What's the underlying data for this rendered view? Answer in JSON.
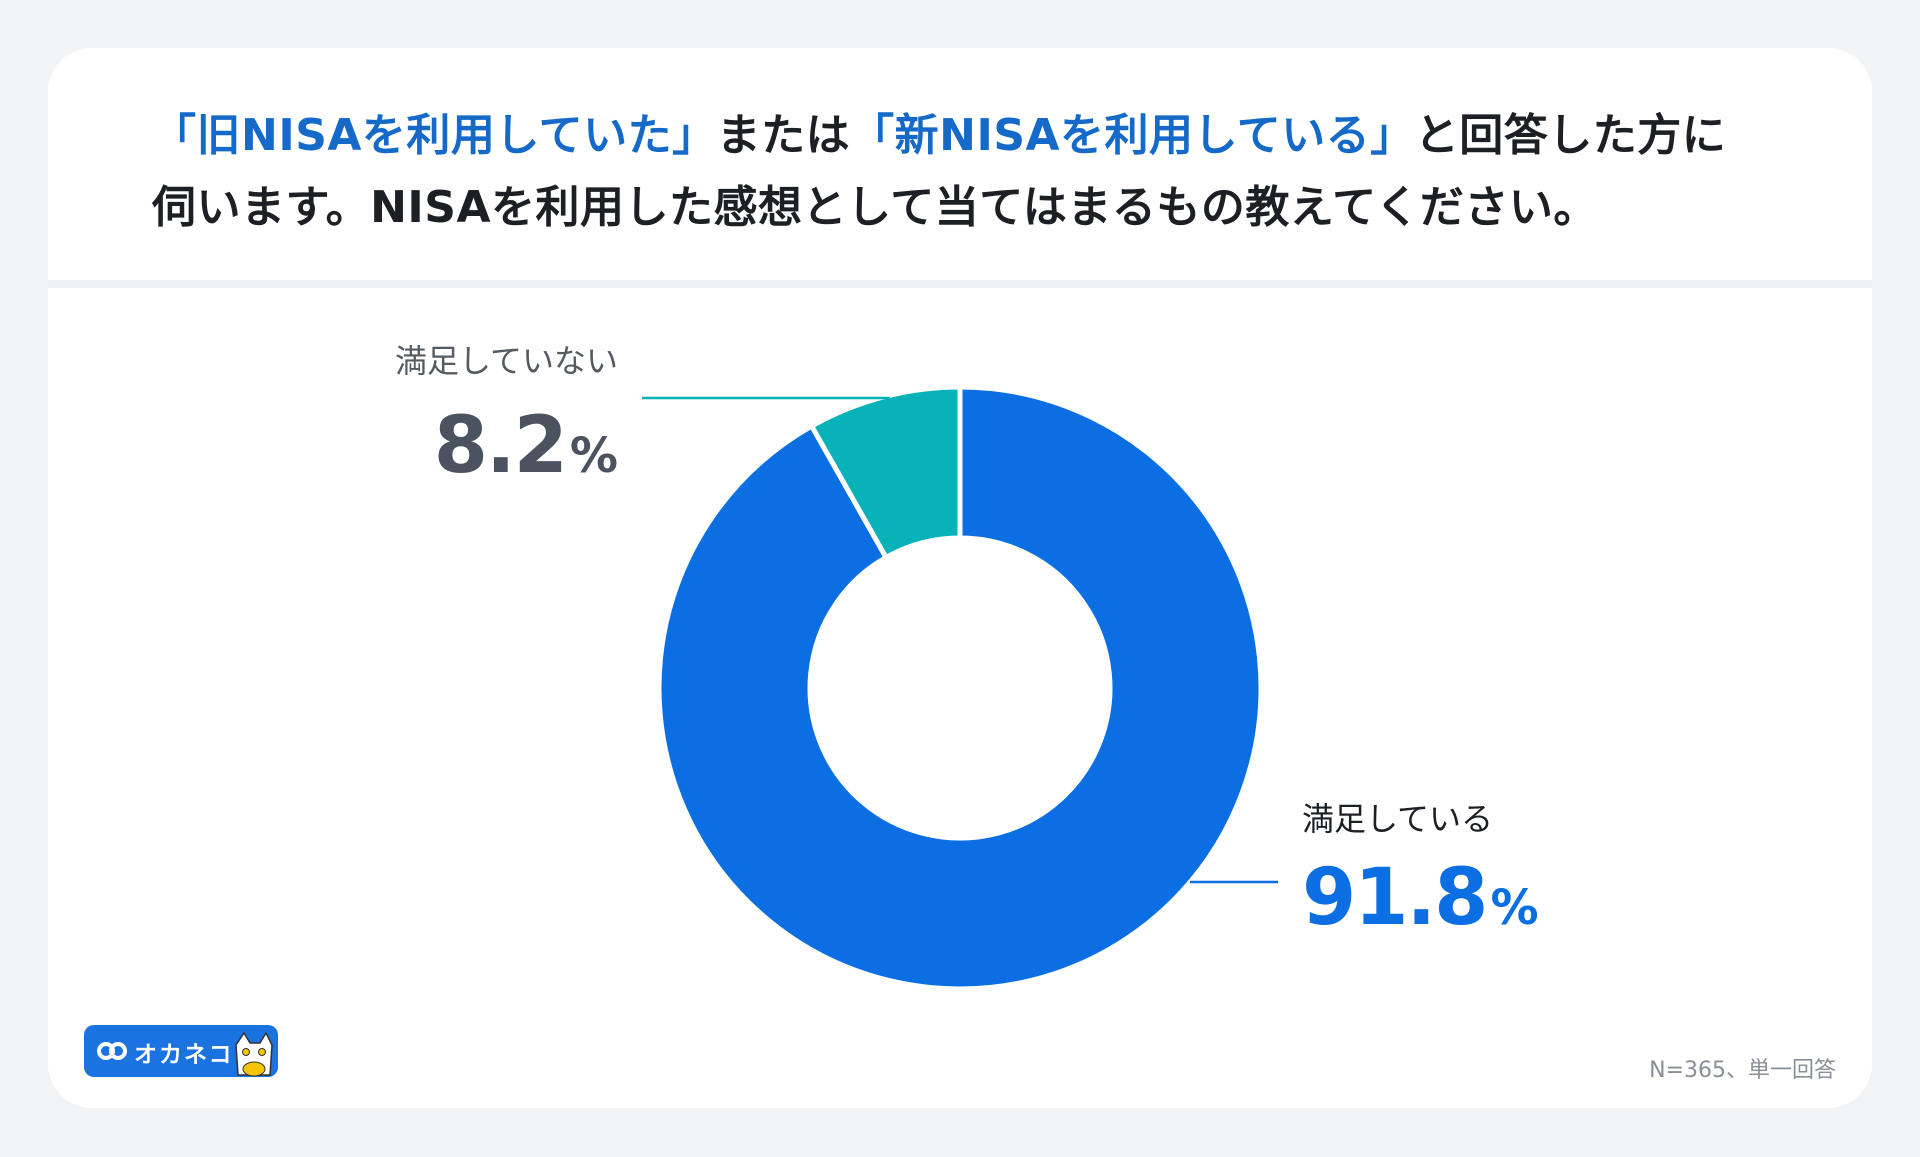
{
  "header": {
    "title_line1": [
      {
        "text": "「旧NISAを利用していた」",
        "highlight": true
      },
      {
        "text": "または",
        "highlight": false
      },
      {
        "text": "「新NISAを利用している」",
        "highlight": true
      },
      {
        "text": "と回答した方に",
        "highlight": false
      }
    ],
    "title_line2": "伺います。NISAを利用した感想として当てはまるもの教えてください。"
  },
  "chart_data": {
    "type": "pie",
    "variant": "donut",
    "slices": [
      {
        "label": "満足している",
        "value": 91.8,
        "display": "91.8",
        "unit": "%",
        "color": "#0b6fe3",
        "value_color": "#0b6fe3",
        "label_color": "#1c1f24"
      },
      {
        "label": "満足していない",
        "value": 8.2,
        "display": "8.2",
        "unit": "%",
        "color": "#07b3b8",
        "value_color": "#4b5360",
        "label_color": "#555b63"
      }
    ]
  },
  "footer": {
    "brand": "オカネコ",
    "note": "N=365、単一回答"
  },
  "colors": {
    "accent": "#1569c9",
    "background": "#f2f3f5"
  }
}
